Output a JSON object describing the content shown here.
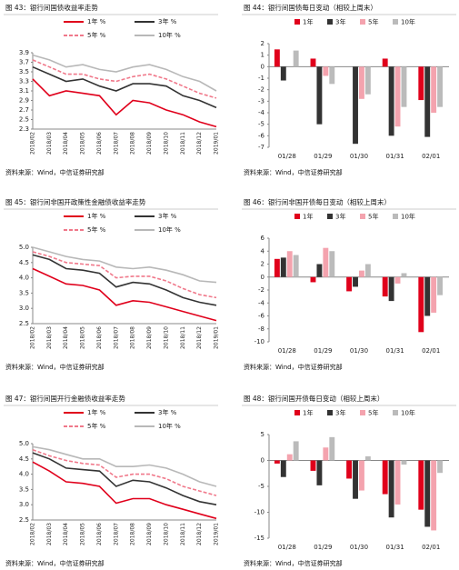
{
  "chart_data": [
    {
      "type": "line",
      "title": "图 43：银行间国债收益率走势",
      "source": "资料来源：Wind，中信证券研究部",
      "categories": [
        "2018/02",
        "2018/03",
        "2018/04",
        "2018/05",
        "2018/06",
        "2018/07",
        "2018/08",
        "2018/09",
        "2018/10",
        "2018/11",
        "2018/12",
        "2019/01"
      ],
      "ylim": [
        2.3,
        3.9
      ],
      "yticks": [
        2.3,
        2.5,
        2.7,
        2.9,
        3.1,
        3.3,
        3.5,
        3.7,
        3.9
      ],
      "series": [
        {
          "name": "1年 %",
          "color": "#e0001b",
          "dash": false,
          "values": [
            3.35,
            3.0,
            3.1,
            3.05,
            3.0,
            2.6,
            2.9,
            2.85,
            2.7,
            2.6,
            2.45,
            2.35
          ]
        },
        {
          "name": "3年 %",
          "color": "#333333",
          "dash": false,
          "values": [
            3.6,
            3.45,
            3.3,
            3.35,
            3.2,
            3.1,
            3.25,
            3.25,
            3.2,
            3.0,
            2.9,
            2.75
          ]
        },
        {
          "name": "5年 %",
          "color": "#f0788a",
          "dash": true,
          "values": [
            3.75,
            3.6,
            3.45,
            3.45,
            3.35,
            3.3,
            3.4,
            3.45,
            3.35,
            3.2,
            3.05,
            2.95
          ]
        },
        {
          "name": "10年 %",
          "color": "#b8b8b8",
          "dash": false,
          "values": [
            3.85,
            3.75,
            3.6,
            3.65,
            3.55,
            3.5,
            3.6,
            3.65,
            3.55,
            3.4,
            3.3,
            3.1
          ]
        }
      ]
    },
    {
      "type": "bar",
      "title": "图 44：银行间国债每日变动（相较上周末）",
      "source": "资料来源：Wind，中信证券研究部",
      "categories": [
        "01/28",
        "01/29",
        "01/30",
        "01/31",
        "02/01"
      ],
      "ylim": [
        -7,
        2
      ],
      "yticks": [
        -7,
        -6,
        -5,
        -4,
        -3,
        -2,
        -1,
        0,
        1,
        2
      ],
      "series": [
        {
          "name": "1年",
          "color": "#e0001b",
          "values": [
            1.5,
            0.7,
            0,
            0.7,
            -2.9
          ]
        },
        {
          "name": "3年",
          "color": "#333333",
          "values": [
            -1.2,
            -5.0,
            -6.7,
            -6.0,
            -6.1
          ]
        },
        {
          "name": "5年",
          "color": "#f4a3ae",
          "values": [
            0,
            -0.8,
            -2.8,
            -5.2,
            -4.0
          ]
        },
        {
          "name": "10年",
          "color": "#bbbbbb",
          "values": [
            1.4,
            -1.5,
            -2.4,
            -3.5,
            -3.5
          ]
        }
      ]
    },
    {
      "type": "line",
      "title": "图 45：银行间非国开政策性金融债收益率走势",
      "source": "资料来源：Wind，中信证券研究部",
      "categories": [
        "2018/02",
        "2018/03",
        "2018/04",
        "2018/05",
        "2018/06",
        "2018/07",
        "2018/08",
        "2018/09",
        "2018/10",
        "2018/11",
        "2018/12",
        "2019/01"
      ],
      "ylim": [
        2.5,
        5.0
      ],
      "yticks": [
        2.5,
        {
          "value": 3,
          "label": "3.0"
        },
        3.5,
        {
          "value": 4,
          "label": "4.0"
        },
        4.5,
        {
          "value": 5,
          "label": "5.0"
        }
      ],
      "series": [
        {
          "name": "1年 %",
          "color": "#e0001b",
          "dash": false,
          "values": [
            4.3,
            4.05,
            3.8,
            3.75,
            3.6,
            3.1,
            3.25,
            3.2,
            3.05,
            2.9,
            2.75,
            2.6
          ]
        },
        {
          "name": "3年 %",
          "color": "#333333",
          "dash": false,
          "values": [
            4.75,
            4.6,
            4.3,
            4.25,
            4.15,
            3.7,
            3.85,
            3.8,
            3.6,
            3.35,
            3.2,
            3.1
          ]
        },
        {
          "name": "5年 %",
          "color": "#f0788a",
          "dash": true,
          "values": [
            4.85,
            4.7,
            4.5,
            4.45,
            4.4,
            4.0,
            4.05,
            4.05,
            3.9,
            3.65,
            3.45,
            3.35
          ]
        },
        {
          "name": "10年 %",
          "color": "#b8b8b8",
          "dash": false,
          "values": [
            5.0,
            4.85,
            4.7,
            4.6,
            4.55,
            4.35,
            4.3,
            4.35,
            4.25,
            4.1,
            3.9,
            3.85
          ]
        }
      ]
    },
    {
      "type": "bar",
      "title": "图 46：银行间非国开债每日变动（相较上周末）",
      "source": "资料来源：Wind，中信证券研究部",
      "categories": [
        "01/28",
        "01/29",
        "01/30",
        "01/31",
        "02/01"
      ],
      "ylim": [
        -10,
        6
      ],
      "yticks": [
        -10,
        -8,
        -6,
        -4,
        -2,
        0,
        2,
        4,
        6
      ],
      "series": [
        {
          "name": "1年",
          "color": "#e0001b",
          "values": [
            2.8,
            -0.8,
            -2.2,
            -3.0,
            -8.5
          ]
        },
        {
          "name": "3年",
          "color": "#333333",
          "values": [
            3.0,
            2.0,
            -1.5,
            -3.7,
            -6.0
          ]
        },
        {
          "name": "5年",
          "color": "#f4a3ae",
          "values": [
            4.0,
            4.5,
            1.0,
            -1.0,
            -5.5
          ]
        },
        {
          "name": "10年",
          "color": "#bbbbbb",
          "values": [
            3.4,
            4.0,
            2.0,
            0.6,
            -2.8
          ]
        }
      ]
    },
    {
      "type": "line",
      "title": "图 47：银行间国开行金融债收益率走势",
      "source": "资料来源：Wind，中信证券研究部",
      "categories": [
        "2018/02",
        "2018/03",
        "2018/04",
        "2018/05",
        "2018/06",
        "2018/07",
        "2018/08",
        "2018/09",
        "2018/10",
        "2018/11",
        "2018/12",
        "2019/01"
      ],
      "ylim": [
        2.5,
        5.0
      ],
      "yticks": [
        2.5,
        {
          "value": 3,
          "label": "3.0"
        },
        3.5,
        {
          "value": 4,
          "label": "4.0"
        },
        4.5,
        {
          "value": 5,
          "label": "5.0"
        }
      ],
      "series": [
        {
          "name": "1年 %",
          "color": "#e0001b",
          "dash": false,
          "values": [
            4.4,
            4.1,
            3.75,
            3.7,
            3.6,
            3.05,
            3.2,
            3.2,
            3.0,
            2.85,
            2.7,
            2.55
          ]
        },
        {
          "name": "3年 %",
          "color": "#333333",
          "dash": false,
          "values": [
            4.7,
            4.5,
            4.2,
            4.15,
            4.1,
            3.6,
            3.8,
            3.75,
            3.55,
            3.3,
            3.1,
            3.0
          ]
        },
        {
          "name": "5年 %",
          "color": "#f0788a",
          "dash": true,
          "values": [
            4.8,
            4.6,
            4.45,
            4.35,
            4.3,
            3.9,
            4.0,
            4.0,
            3.85,
            3.6,
            3.45,
            3.3
          ]
        },
        {
          "name": "10年 %",
          "color": "#b8b8b8",
          "dash": false,
          "values": [
            4.9,
            4.8,
            4.65,
            4.5,
            4.5,
            4.25,
            4.25,
            4.3,
            4.2,
            4.0,
            3.75,
            3.6
          ]
        }
      ]
    },
    {
      "type": "bar",
      "title": "图 48：银行间国开债每日变动（相较上周末）",
      "source": "资料来源：Wind，中信证券研究部",
      "categories": [
        "01/28",
        "01/29",
        "01/30",
        "01/31",
        "02/01"
      ],
      "ylim": [
        -15,
        5
      ],
      "yticks": [
        -15,
        -10,
        -5,
        0,
        5
      ],
      "series": [
        {
          "name": "1年",
          "color": "#e0001b",
          "values": [
            -0.6,
            -2.0,
            -3.5,
            -6.5,
            -9.5
          ]
        },
        {
          "name": "3年",
          "color": "#333333",
          "values": [
            -3.2,
            -4.8,
            -7.4,
            -11.0,
            -12.8
          ]
        },
        {
          "name": "5年",
          "color": "#f4a3ae",
          "values": [
            1.2,
            2.5,
            -5.8,
            -8.5,
            -13.5
          ]
        },
        {
          "name": "10年",
          "color": "#bbbbbb",
          "values": [
            3.7,
            4.5,
            0.8,
            -0.8,
            -2.4
          ]
        }
      ]
    }
  ]
}
